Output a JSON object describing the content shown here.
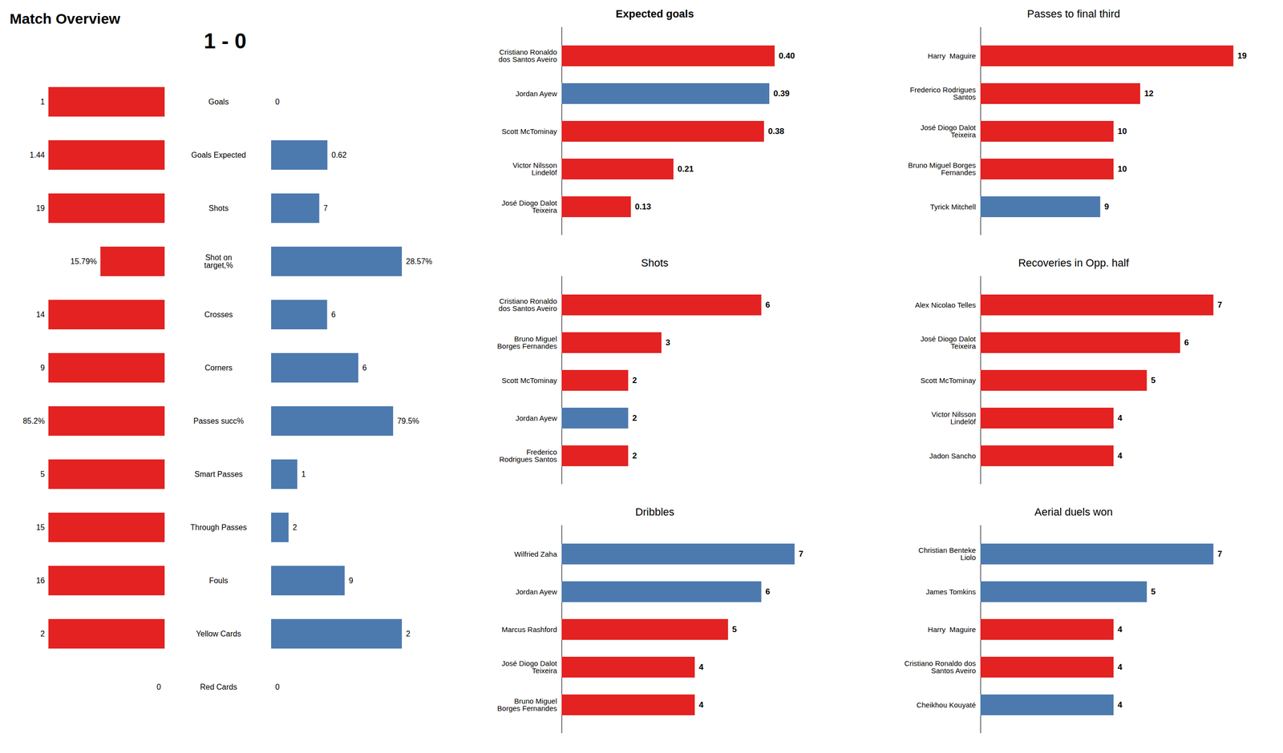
{
  "chart_data": [
    {
      "type": "bar",
      "orientation": "horizontal",
      "title": "Match Overview",
      "subtitle": "1 - 0",
      "categories": [
        "Goals",
        "Goals Expected",
        "Shots",
        "Shot on\ntarget,%",
        "Crosses",
        "Corners",
        "Passes succ%",
        "Smart Passes",
        "Through Passes",
        "Fouls",
        "Yellow Cards",
        "Red Cards"
      ],
      "series": [
        {
          "color": "#E32221",
          "values": [
            1,
            1.44,
            19,
            15.79,
            14,
            9,
            85.2,
            5,
            15,
            16,
            2,
            0
          ],
          "value_labels": [
            "1",
            "1.44",
            "19",
            "15.79%",
            "14",
            "9",
            "85.2%",
            "5",
            "15",
            "16",
            "2",
            "0"
          ]
        },
        {
          "color": "#4c7aaf",
          "values": [
            0,
            0.62,
            7,
            28.57,
            6,
            6,
            79.5,
            1,
            2,
            9,
            2,
            0
          ],
          "value_labels": [
            "0",
            "0.62",
            "7",
            "28.57%",
            "6",
            "6",
            "79.5%",
            "1",
            "2",
            "9",
            "2",
            "0"
          ]
        }
      ],
      "data_labels": true,
      "tick_labels": "y"
    },
    {
      "type": "bar",
      "orientation": "horizontal",
      "title": "Expected goals",
      "categories": [
        "Cristiano Ronaldo\ndos Santos Aveiro",
        "Jordan Ayew",
        "Scott McTominay",
        "Victor Nilsson\nLindelöf",
        "José Diogo Dalot\nTeixeira"
      ],
      "values": [
        0.4,
        0.39,
        0.38,
        0.21,
        0.13
      ],
      "value_labels": [
        "0.40",
        "0.39",
        "0.38",
        "0.21",
        "0.13"
      ],
      "colors": [
        "#E32221",
        "#4c7aaf",
        "#E32221",
        "#E32221",
        "#E32221"
      ],
      "xlim": [
        0,
        0.5
      ],
      "data_labels": true,
      "tick_labels": "y"
    },
    {
      "type": "bar",
      "orientation": "horizontal",
      "title": "Passes to final third",
      "categories": [
        "Harry  Maguire",
        "Frederico Rodrigues\nSantos",
        "José Diogo Dalot\nTeixeira",
        "Bruno Miguel Borges\nFernandes",
        "Tyrick Mitchell"
      ],
      "values": [
        19,
        12,
        10,
        10,
        9
      ],
      "value_labels": [
        "19",
        "12",
        "10",
        "10",
        "9"
      ],
      "colors": [
        "#E32221",
        "#E32221",
        "#E32221",
        "#E32221",
        "#4c7aaf"
      ],
      "xlim": [
        0,
        20
      ],
      "data_labels": true,
      "tick_labels": "y"
    },
    {
      "type": "bar",
      "orientation": "horizontal",
      "title": "Shots",
      "categories": [
        "Cristiano Ronaldo\ndos Santos Aveiro",
        "Bruno Miguel\nBorges Fernandes",
        "Scott McTominay",
        "Jordan Ayew",
        "Frederico\nRodrigues Santos"
      ],
      "values": [
        6,
        3,
        2,
        2,
        2
      ],
      "value_labels": [
        "6",
        "3",
        "2",
        "2",
        "2"
      ],
      "colors": [
        "#E32221",
        "#E32221",
        "#E32221",
        "#4c7aaf",
        "#E32221"
      ],
      "xlim": [
        0,
        8
      ],
      "data_labels": true,
      "tick_labels": "y"
    },
    {
      "type": "bar",
      "orientation": "horizontal",
      "title": "Recoveries in Opp. half",
      "categories": [
        "Alex Nicolao Telles",
        "José Diogo Dalot\nTeixeira",
        "Scott McTominay",
        "Victor Nilsson\nLindelöf",
        "Jadon Sancho"
      ],
      "values": [
        7,
        6,
        5,
        4,
        4
      ],
      "value_labels": [
        "7",
        "6",
        "5",
        "4",
        "4"
      ],
      "colors": [
        "#E32221",
        "#E32221",
        "#E32221",
        "#E32221",
        "#E32221"
      ],
      "xlim": [
        0,
        8
      ],
      "data_labels": true,
      "tick_labels": "y"
    },
    {
      "type": "bar",
      "orientation": "horizontal",
      "title": "Dribbles",
      "categories": [
        "Wilfried Zaha",
        "Jordan Ayew",
        "Marcus Rashford",
        "José Diogo Dalot\nTeixeira",
        "Bruno Miguel\nBorges Fernandes"
      ],
      "values": [
        7,
        6,
        5,
        4,
        4
      ],
      "value_labels": [
        "7",
        "6",
        "5",
        "4",
        "4"
      ],
      "colors": [
        "#4c7aaf",
        "#4c7aaf",
        "#E32221",
        "#E32221",
        "#E32221"
      ],
      "xlim": [
        0,
        8
      ],
      "data_labels": true,
      "tick_labels": "y"
    },
    {
      "type": "bar",
      "orientation": "horizontal",
      "title": "Aerial duels won",
      "categories": [
        "Christian Benteke\nLiolo",
        "James Tomkins",
        "Harry  Maguire",
        "Cristiano Ronaldo dos\nSantos Aveiro",
        "Cheikhou Kouyaté"
      ],
      "values": [
        7,
        5,
        4,
        4,
        4
      ],
      "value_labels": [
        "7",
        "5",
        "4",
        "4",
        "4"
      ],
      "colors": [
        "#4c7aaf",
        "#4c7aaf",
        "#E32221",
        "#E32221",
        "#4c7aaf"
      ],
      "xlim": [
        0,
        8
      ],
      "data_labels": true,
      "tick_labels": "y"
    }
  ]
}
